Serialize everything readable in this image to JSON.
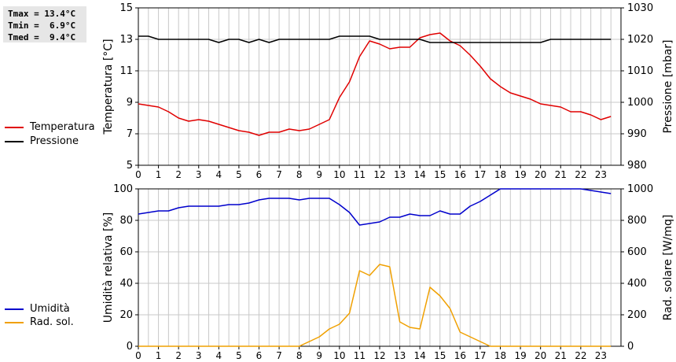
{
  "stats": {
    "tmax": "Tmax = 13.4°C",
    "tmin": "Tmin =  6.9°C",
    "tmed": "Tmed =  9.4°C"
  },
  "legend_top": [
    {
      "label": "Temperatura",
      "color": "#e00000"
    },
    {
      "label": "Pressione",
      "color": "#000000"
    }
  ],
  "legend_bottom": [
    {
      "label": "Umidità",
      "color": "#0000cc"
    },
    {
      "label": "Rad. sol.",
      "color": "#f0a000"
    }
  ],
  "chart_data": [
    {
      "type": "line",
      "xlabel": "",
      "ylabel": "Temperatura [°C]",
      "y2label": "Pressione [mbar]",
      "xlim": [
        0,
        24
      ],
      "ylim": [
        5,
        15
      ],
      "y2lim": [
        980,
        1030
      ],
      "xticks": [
        "0",
        "1",
        "2",
        "3",
        "4",
        "5",
        "6",
        "7",
        "8",
        "9",
        "10",
        "11",
        "12",
        "13",
        "14",
        "15",
        "16",
        "17",
        "18",
        "19",
        "20",
        "21",
        "22",
        "23"
      ],
      "yticks": [
        "5",
        "7",
        "9",
        "11",
        "13",
        "15"
      ],
      "y2ticks": [
        "980",
        "990",
        "1000",
        "1010",
        "1020",
        "1030"
      ],
      "grid": true,
      "series": [
        {
          "name": "Temperatura",
          "axis": "left",
          "color": "#e00000",
          "x": [
            0,
            0.5,
            1,
            1.5,
            2,
            2.5,
            3,
            3.5,
            4,
            4.5,
            5,
            5.5,
            6,
            6.5,
            7,
            7.5,
            8,
            8.5,
            9,
            9.5,
            10,
            10.5,
            11,
            11.5,
            12,
            12.5,
            13,
            13.5,
            14,
            14.5,
            15,
            15.5,
            16,
            16.5,
            17,
            17.5,
            18,
            18.5,
            19,
            19.5,
            20,
            20.5,
            21,
            21.5,
            22,
            22.5,
            23,
            23.5
          ],
          "y": [
            8.9,
            8.8,
            8.7,
            8.4,
            8.0,
            7.8,
            7.9,
            7.8,
            7.6,
            7.4,
            7.2,
            7.1,
            6.9,
            7.1,
            7.1,
            7.3,
            7.2,
            7.3,
            7.6,
            7.9,
            9.3,
            10.3,
            11.9,
            12.9,
            12.7,
            12.4,
            12.5,
            12.5,
            13.1,
            13.3,
            13.4,
            12.9,
            12.6,
            12.0,
            11.3,
            10.5,
            10.0,
            9.6,
            9.4,
            9.2,
            8.9,
            8.8,
            8.7,
            8.4,
            8.4,
            8.2,
            7.9,
            8.1
          ]
        },
        {
          "name": "Pressione",
          "axis": "right",
          "color": "#000000",
          "x": [
            0,
            0.5,
            1,
            1.5,
            2,
            2.5,
            3,
            3.5,
            4,
            4.5,
            5,
            5.5,
            6,
            6.5,
            7,
            7.5,
            8,
            8.5,
            9,
            9.5,
            10,
            10.5,
            11,
            11.5,
            12,
            12.5,
            13,
            13.5,
            14,
            14.5,
            15,
            15.5,
            16,
            16.5,
            17,
            17.5,
            18,
            18.5,
            19,
            19.5,
            20,
            20.5,
            21,
            21.5,
            22,
            22.5,
            23,
            23.5
          ],
          "y": [
            1021,
            1021,
            1020,
            1020,
            1020,
            1020,
            1020,
            1020,
            1019,
            1020,
            1020,
            1019,
            1020,
            1019,
            1020,
            1020,
            1020,
            1020,
            1020,
            1020,
            1021,
            1021,
            1021,
            1021,
            1020,
            1020,
            1020,
            1020,
            1020,
            1019,
            1019,
            1019,
            1019,
            1019,
            1019,
            1019,
            1019,
            1019,
            1019,
            1019,
            1019,
            1020,
            1020,
            1020,
            1020,
            1020,
            1020,
            1020
          ]
        }
      ]
    },
    {
      "type": "line",
      "xlabel": "",
      "ylabel": "Umidità relativa [%]",
      "y2label": "Rad. solare [W/mq]",
      "xlim": [
        0,
        24
      ],
      "ylim": [
        0,
        100
      ],
      "y2lim": [
        0,
        1000
      ],
      "xticks": [
        "0",
        "1",
        "2",
        "3",
        "4",
        "5",
        "6",
        "7",
        "8",
        "9",
        "10",
        "11",
        "12",
        "13",
        "14",
        "15",
        "16",
        "17",
        "18",
        "19",
        "20",
        "21",
        "22",
        "23"
      ],
      "yticks": [
        "0",
        "20",
        "40",
        "60",
        "80",
        "100"
      ],
      "y2ticks": [
        "0",
        "200",
        "400",
        "600",
        "800",
        "1000"
      ],
      "grid": true,
      "series": [
        {
          "name": "Umidità",
          "axis": "left",
          "color": "#0000cc",
          "x": [
            0,
            0.5,
            1,
            1.5,
            2,
            2.5,
            3,
            3.5,
            4,
            4.5,
            5,
            5.5,
            6,
            6.5,
            7,
            7.5,
            8,
            8.5,
            9,
            9.5,
            10,
            10.5,
            11,
            11.5,
            12,
            12.5,
            13,
            13.5,
            14,
            14.5,
            15,
            15.5,
            16,
            16.5,
            17,
            17.5,
            18,
            18.5,
            19,
            19.5,
            20,
            20.5,
            21,
            21.5,
            22,
            22.5,
            23,
            23.5
          ],
          "y": [
            84,
            85,
            86,
            86,
            88,
            89,
            89,
            89,
            89,
            90,
            90,
            91,
            93,
            94,
            94,
            94,
            93,
            94,
            94,
            94,
            90,
            85,
            77,
            78,
            79,
            82,
            82,
            84,
            83,
            83,
            86,
            84,
            84,
            89,
            92,
            96,
            100,
            100,
            100,
            100,
            100,
            100,
            100,
            100,
            100,
            99,
            98,
            97
          ]
        },
        {
          "name": "Rad. sol.",
          "axis": "right",
          "color": "#f0a000",
          "x": [
            0,
            0.5,
            1,
            1.5,
            2,
            2.5,
            3,
            3.5,
            4,
            4.5,
            5,
            5.5,
            6,
            6.5,
            7,
            7.5,
            8,
            8.5,
            9,
            9.5,
            10,
            10.5,
            11,
            11.5,
            12,
            12.5,
            13,
            13.5,
            14,
            14.5,
            15,
            15.5,
            16,
            16.5,
            17,
            17.5,
            18,
            18.5,
            19,
            19.5,
            20,
            20.5,
            21,
            21.5,
            22,
            22.5,
            23,
            23.5
          ],
          "y": [
            0,
            0,
            0,
            0,
            0,
            0,
            0,
            0,
            0,
            0,
            0,
            0,
            0,
            0,
            0,
            0,
            0,
            30,
            60,
            110,
            140,
            210,
            480,
            450,
            520,
            505,
            155,
            120,
            110,
            375,
            320,
            240,
            90,
            60,
            30,
            0,
            0,
            0,
            0,
            0,
            0,
            0,
            0,
            0,
            0,
            0,
            0,
            0
          ]
        }
      ]
    }
  ]
}
